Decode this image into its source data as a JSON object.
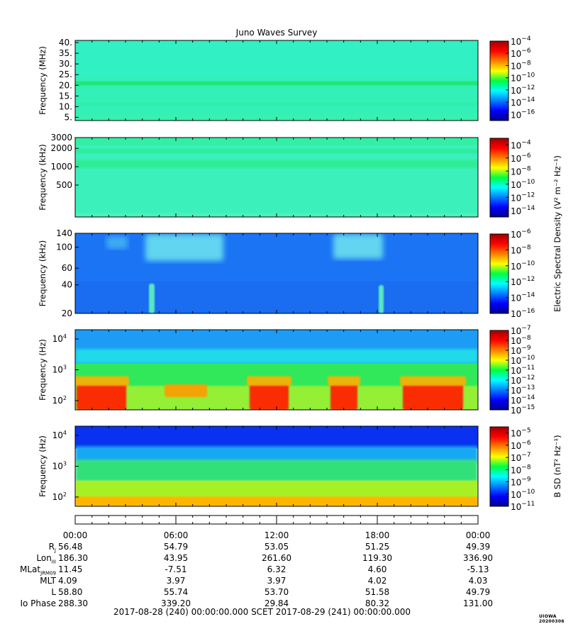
{
  "chart_data": {
    "type": "heatmap",
    "title": "Juno Waves Survey",
    "panels": [
      {
        "id": "hfr-high",
        "ylabel": "Frequency (MHz)",
        "yscale": "linear",
        "yrange": [
          3.5,
          41
        ],
        "yticks": [
          {
            "v": 5,
            "t": "5."
          },
          {
            "v": 10,
            "t": "10."
          },
          {
            "v": 15,
            "t": "15."
          },
          {
            "v": 20,
            "t": "20."
          },
          {
            "v": 25,
            "t": "25."
          },
          {
            "v": 30,
            "t": "30."
          },
          {
            "v": 35,
            "t": "35."
          },
          {
            "v": 40,
            "t": "40."
          }
        ],
        "colorbar": {
          "min_exp": -17,
          "max_exp": -4,
          "ticks": [
            -4,
            -6,
            -8,
            -10,
            -12,
            -14,
            -16
          ]
        }
      },
      {
        "id": "hfr-low",
        "ylabel": "Frequency (kHz)",
        "yscale": "log",
        "yrange": [
          150,
          3000
        ],
        "yticks": [
          {
            "v": 500,
            "t": "500"
          },
          {
            "v": 1000,
            "t": "1000"
          },
          {
            "v": 2000,
            "t": "2000"
          },
          {
            "v": 3000,
            "t": "3000"
          }
        ],
        "colorbar": {
          "min_exp": -15,
          "max_exp": -3,
          "ticks": [
            -4,
            -6,
            -8,
            -10,
            -12,
            -14
          ]
        }
      },
      {
        "id": "lfr-high",
        "ylabel": "Frequency (kHz)",
        "yscale": "log",
        "yrange": [
          20,
          140
        ],
        "yticks": [
          {
            "v": 20,
            "t": "20"
          },
          {
            "v": 40,
            "t": "40"
          },
          {
            "v": 60,
            "t": "60"
          },
          {
            "v": 100,
            "t": "100"
          },
          {
            "v": 140,
            "t": "140"
          }
        ],
        "colorbar": {
          "min_exp": -16,
          "max_exp": -6,
          "ticks": [
            -6,
            -8,
            -10,
            -12,
            -14,
            -16
          ]
        }
      },
      {
        "id": "lfr-low",
        "ylabel": "Frequency (Hz)",
        "yscale": "log",
        "yrange": [
          50,
          20000
        ],
        "yticks": [
          {
            "v": 100,
            "t": "10",
            "sup": "2"
          },
          {
            "v": 1000,
            "t": "10",
            "sup": "3"
          },
          {
            "v": 10000,
            "t": "10",
            "sup": "4"
          }
        ],
        "colorbar": {
          "min_exp": -15,
          "max_exp": -7,
          "ticks": [
            -7,
            -8,
            -9,
            -10,
            -11,
            -12,
            -13,
            -14,
            -15
          ]
        }
      },
      {
        "id": "bsd",
        "ylabel": "Frequency (Hz)",
        "yscale": "log",
        "yrange": [
          50,
          20000
        ],
        "yticks": [
          {
            "v": 100,
            "t": "10",
            "sup": "2"
          },
          {
            "v": 1000,
            "t": "10",
            "sup": "3"
          },
          {
            "v": 10000,
            "t": "10",
            "sup": "4"
          }
        ],
        "colorbar": {
          "min_exp": -11,
          "max_exp": -4.5,
          "ticks": [
            -5,
            -6,
            -7,
            -8,
            -9,
            -10,
            -11
          ]
        }
      }
    ],
    "colorbar_labels": {
      "electric": "Electric Spectral Density (V² m⁻² Hz⁻¹)",
      "magnetic": "B SD (nT² Hz⁻¹)"
    },
    "time_axis": {
      "ticks": [
        "00:00",
        "06:00",
        "12:00",
        "18:00",
        "00:00"
      ]
    },
    "ephemeris": [
      {
        "label": "R",
        "sub": "J",
        "values": [
          "56.48",
          "54.79",
          "53.05",
          "51.25",
          "49.39"
        ]
      },
      {
        "label": "Lon",
        "sub": "III",
        "values": [
          "186.30",
          "43.95",
          "261.60",
          "119.30",
          "336.90"
        ]
      },
      {
        "label": "MLat",
        "sub": "JRM09",
        "values": [
          "11.45",
          "-7.51",
          "6.32",
          "4.60",
          "-5.13"
        ]
      },
      {
        "label": "MLT",
        "sub": "",
        "values": [
          "4.09",
          "3.97",
          "3.97",
          "4.02",
          "4.03"
        ]
      },
      {
        "label": "L",
        "sub": "",
        "values": [
          "58.80",
          "55.74",
          "53.70",
          "51.58",
          "49.79"
        ]
      },
      {
        "label": "Io Phase",
        "sub": "",
        "values": [
          "288.30",
          "339.20",
          "29.84",
          "80.32",
          "131.00"
        ]
      }
    ],
    "scet_line": "2017-08-28 (240) 00:00:00.000     SCET     2017-08-29 (241) 00:00:00.000",
    "stamp": "UIOWA 20200306"
  }
}
